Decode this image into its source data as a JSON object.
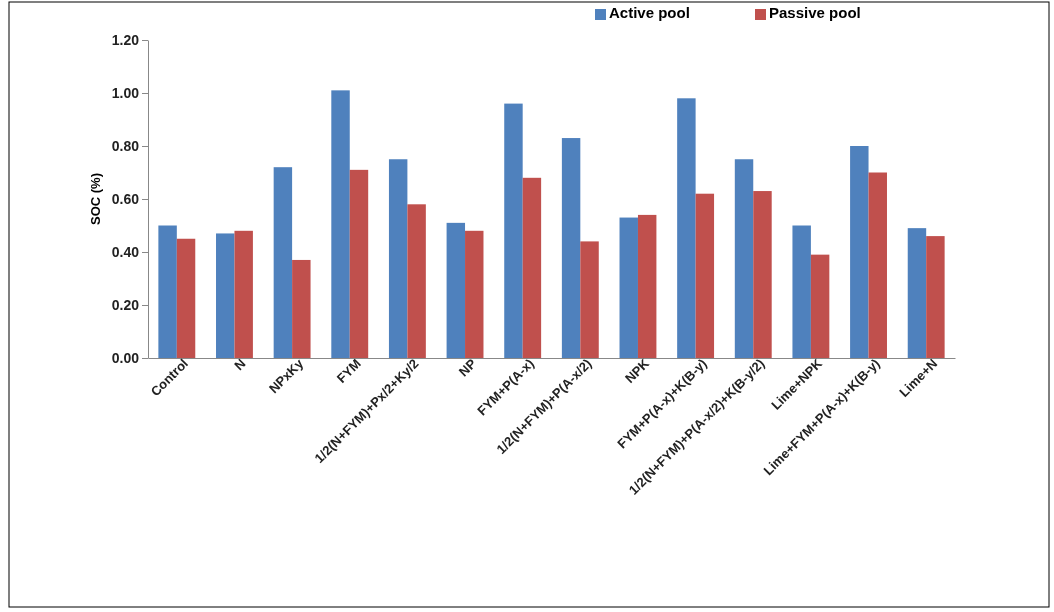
{
  "chart_data": {
    "type": "bar",
    "ylabel": "SOC (%)",
    "categories": [
      "Control",
      "N",
      "NPxKy",
      "FYM",
      "1/2(N+FYM)+Px/2+Ky/2",
      "NP",
      "FYM+P(A-x)",
      "1/2(N+FYM)+P(A-x/2)",
      "NPK",
      "FYM+P(A-x)+K(B-y)",
      "1/2(N+FYM)+P(A-x/2)+K(B-y/2)",
      "Lime+NPK",
      "Lime+FYM+P(A-x)+K(B-y)",
      "Lime+N"
    ],
    "series": [
      {
        "name": "Active pool",
        "color": "#4f81bd",
        "values": [
          0.5,
          0.47,
          0.72,
          1.01,
          0.75,
          0.51,
          0.96,
          0.83,
          0.53,
          0.98,
          0.75,
          0.5,
          0.8,
          0.49
        ]
      },
      {
        "name": "Passive pool",
        "color": "#c0504d",
        "values": [
          0.45,
          0.48,
          0.37,
          0.71,
          0.58,
          0.48,
          0.68,
          0.44,
          0.54,
          0.62,
          0.63,
          0.39,
          0.7,
          0.46
        ]
      }
    ],
    "ylim": [
      0,
      1.2
    ],
    "yticks": [
      {
        "value": 0,
        "label": "0.00"
      },
      {
        "value": 0.2,
        "label": "0.20"
      },
      {
        "value": 0.4,
        "label": "0.40"
      },
      {
        "value": 0.6,
        "label": "0.60"
      },
      {
        "value": 0.8,
        "label": "0.80"
      },
      {
        "value": 1.0,
        "label": "1.00"
      },
      {
        "value": 1.2,
        "label": "1.20"
      }
    ],
    "grid": false,
    "legend": "top right"
  }
}
